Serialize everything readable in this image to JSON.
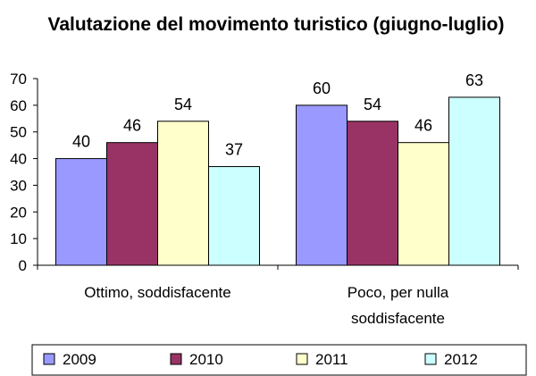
{
  "chart_data": {
    "type": "bar",
    "title": "Valutazione del movimento turistico (giugno-luglio)",
    "categories": [
      [
        "Ottimo, soddisfacente"
      ],
      [
        "Poco, per nulla",
        "soddisfacente"
      ]
    ],
    "series": [
      {
        "name": "2009",
        "values": [
          40,
          60
        ],
        "color": "#9999ff"
      },
      {
        "name": "2010",
        "values": [
          46,
          54
        ],
        "color": "#993366"
      },
      {
        "name": "2011",
        "values": [
          54,
          46
        ],
        "color": "#ffffcc"
      },
      {
        "name": "2012",
        "values": [
          37,
          63
        ],
        "color": "#ccffff"
      }
    ],
    "ylim": [
      0,
      70
    ],
    "yticks": [
      0,
      10,
      20,
      30,
      40,
      50,
      60,
      70
    ],
    "grid": false,
    "legend_position": "bottom"
  }
}
